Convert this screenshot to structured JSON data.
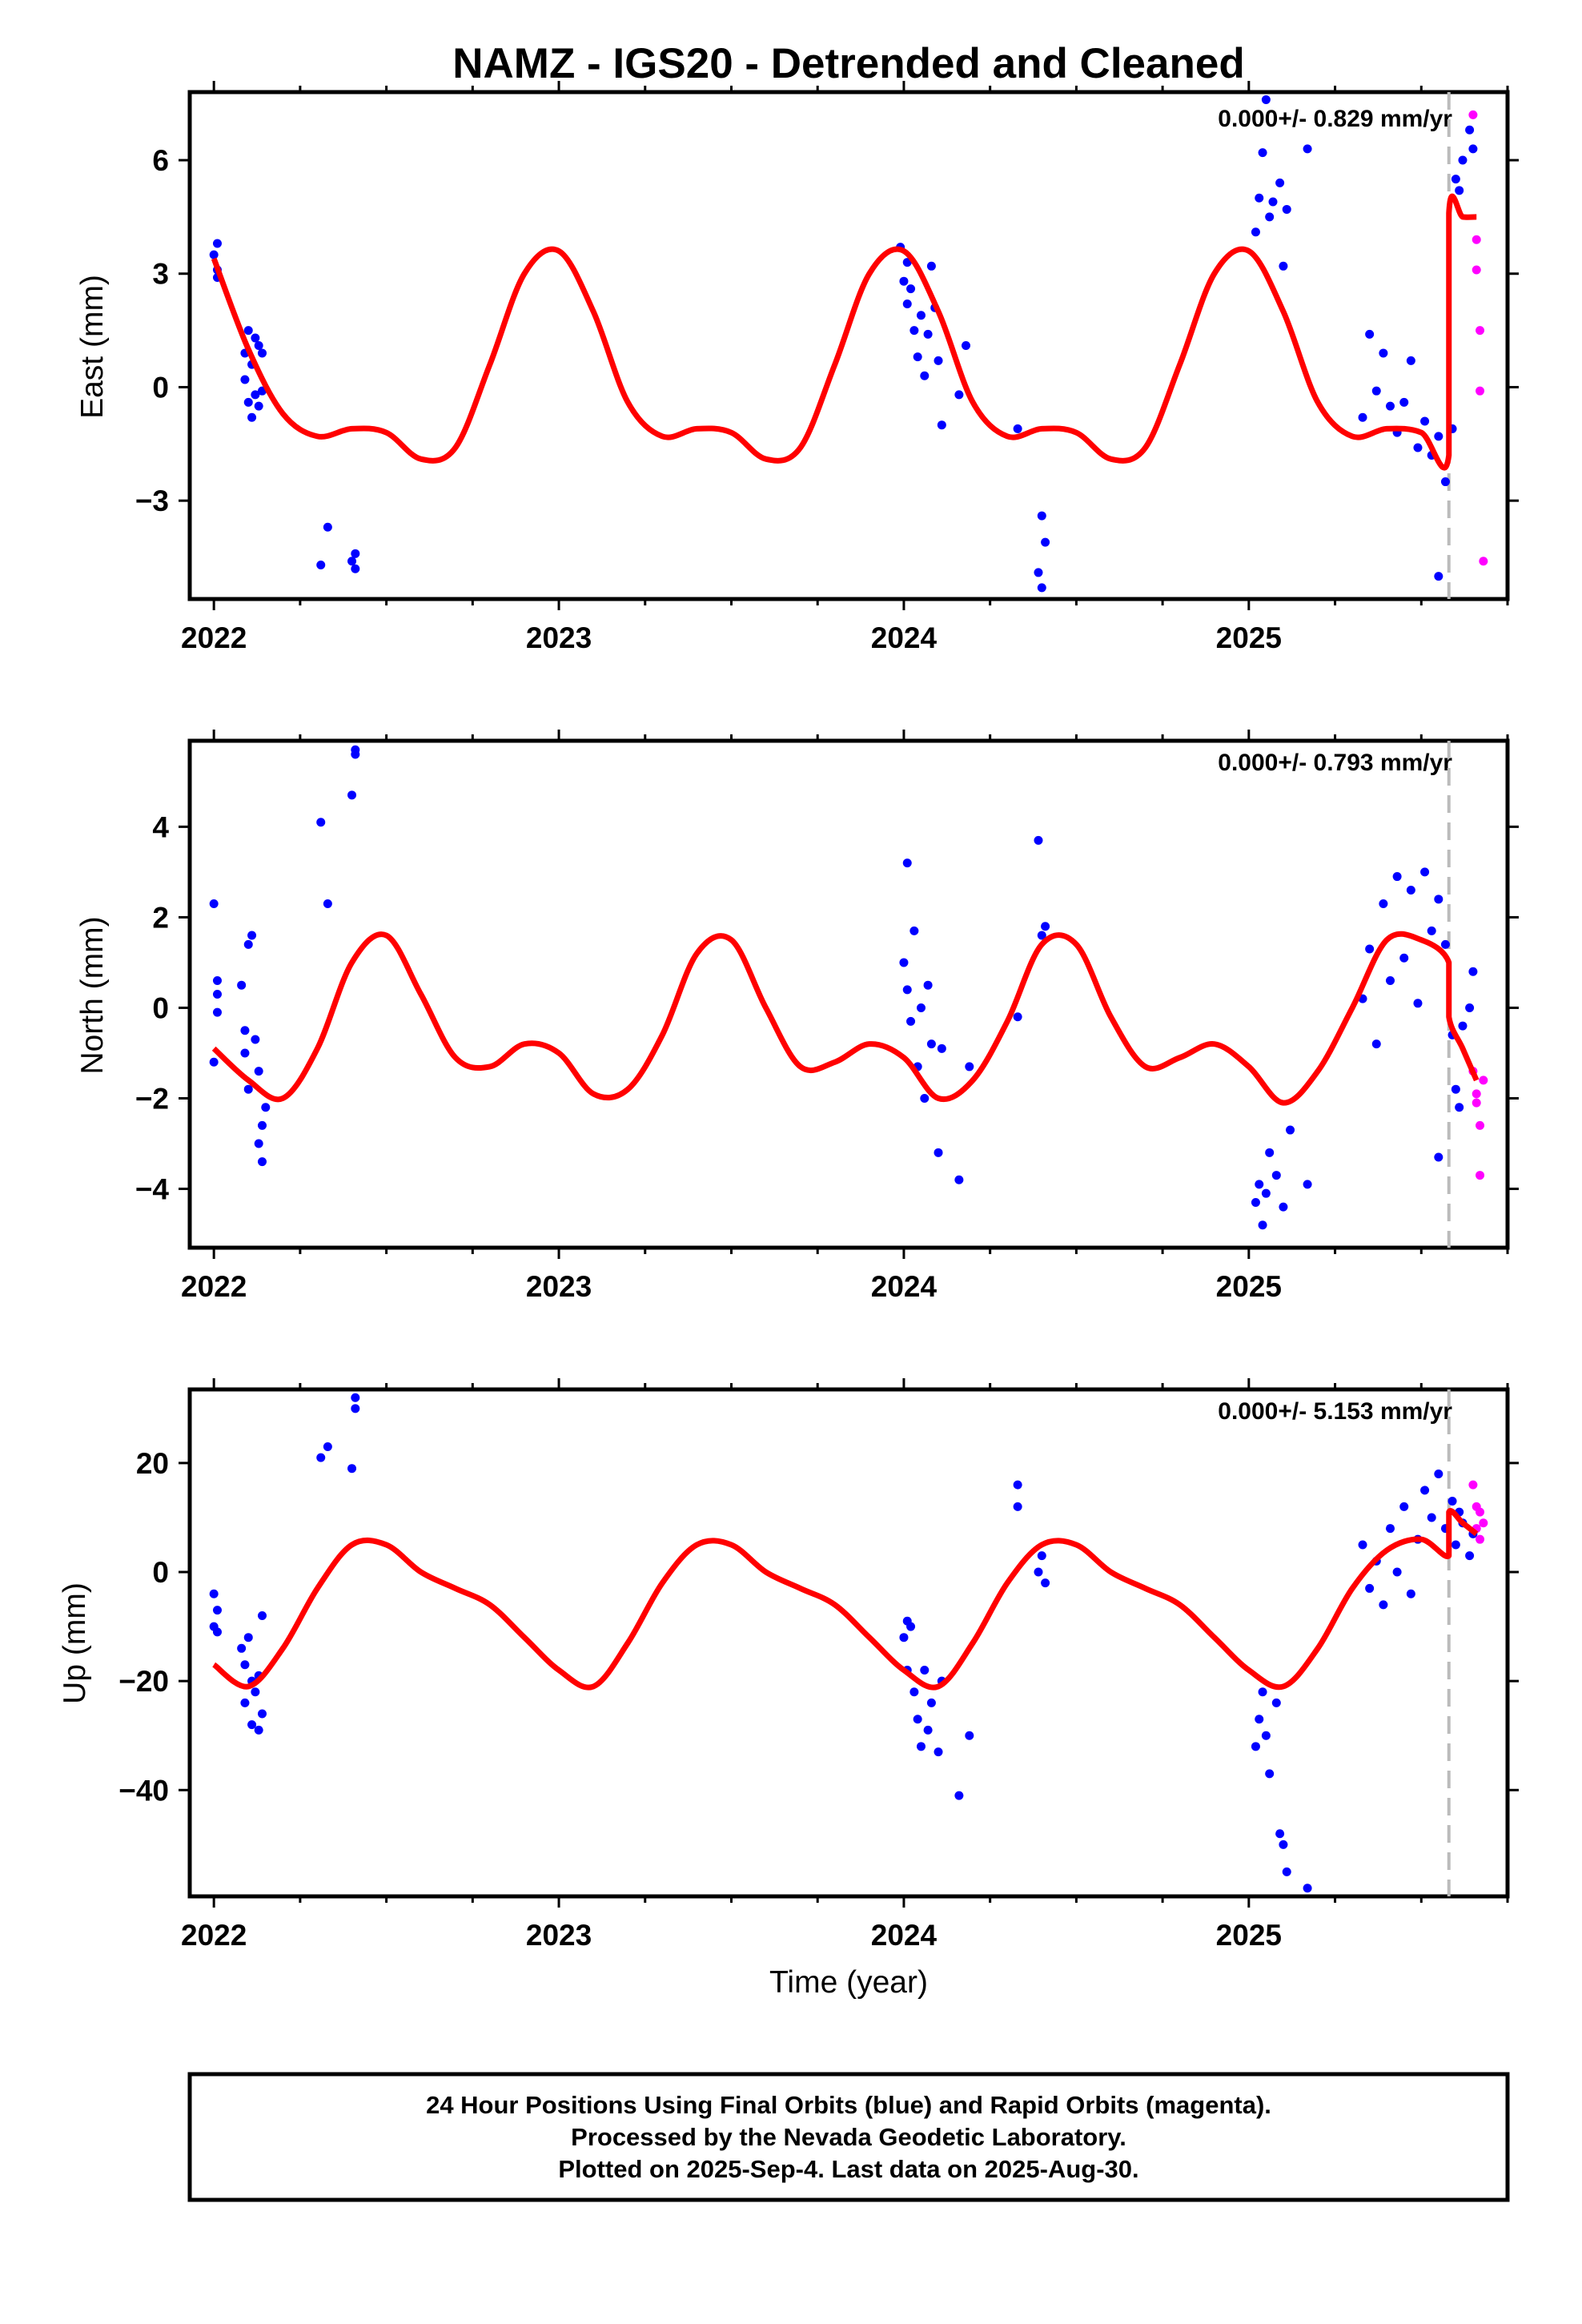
{
  "figure": {
    "title": "NAMZ - IGS20 - Detrended and Cleaned",
    "xlabel": "Time (year)",
    "footer": [
      "24 Hour Positions Using Final Orbits (blue) and Rapid Orbits (magenta).",
      "Processed by the Nevada Geodetic Laboratory.",
      "Plotted on 2025-Sep-4. Last data on 2025-Aug-30."
    ]
  },
  "colors": {
    "final": "#0000ff",
    "rapid": "#ff00ff",
    "model": "#ff0000",
    "break_line": "#bbbbbb",
    "axis": "#000000"
  },
  "chart_data": [
    {
      "type": "scatter",
      "panel": "east",
      "ylabel": "East (mm)",
      "rate_text": "0.000+/- 0.829 mm/yr",
      "xlim": [
        2021.93,
        2025.75
      ],
      "ylim": [
        -5.6,
        7.8
      ],
      "xticks": [
        2022,
        2023,
        2024,
        2025
      ],
      "yticks": [
        6,
        3,
        0,
        -3
      ],
      "ytick_labels": [
        "6",
        "3",
        "0",
        "−3"
      ],
      "equipment_break": 2025.58,
      "model": {
        "x": [
          2022.0,
          2022.1,
          2022.2,
          2022.3,
          2022.4,
          2022.5,
          2022.6,
          2022.7,
          2022.8,
          2022.9,
          2023.0,
          2023.1,
          2023.2,
          2023.3,
          2023.4,
          2023.5,
          2023.6,
          2023.7,
          2023.8,
          2023.9,
          2024.0,
          2024.1,
          2024.2,
          2024.3,
          2024.4,
          2024.5,
          2024.6,
          2024.7,
          2024.8,
          2024.9,
          2025.0,
          2025.1,
          2025.2,
          2025.3,
          2025.4,
          2025.5,
          2025.58,
          2025.58,
          2025.62,
          2025.66
        ],
        "y": [
          3.4,
          1.0,
          -0.7,
          -1.3,
          -1.1,
          -1.2,
          -1.9,
          -1.6,
          0.6,
          3.0,
          3.6,
          2.0,
          -0.4,
          -1.3,
          -1.1,
          -1.2,
          -1.9,
          -1.6,
          0.6,
          3.0,
          3.6,
          2.0,
          -0.4,
          -1.3,
          -1.1,
          -1.2,
          -1.9,
          -1.6,
          0.6,
          3.0,
          3.6,
          2.0,
          -0.4,
          -1.3,
          -1.1,
          -1.2,
          -1.8,
          4.6,
          4.5,
          4.5
        ]
      },
      "final_points": {
        "x": [
          2022.0,
          2022.01,
          2022.01,
          2022.01,
          2022.09,
          2022.09,
          2022.1,
          2022.1,
          2022.11,
          2022.11,
          2022.12,
          2022.12,
          2022.13,
          2022.13,
          2022.14,
          2022.14,
          2022.31,
          2022.33,
          2022.4,
          2022.41,
          2022.41,
          2023.99,
          2024.0,
          2024.01,
          2024.01,
          2024.02,
          2024.03,
          2024.04,
          2024.05,
          2024.06,
          2024.07,
          2024.08,
          2024.09,
          2024.1,
          2024.11,
          2024.16,
          2024.18,
          2024.33,
          2024.39,
          2024.4,
          2024.4,
          2024.41,
          2025.02,
          2025.03,
          2025.04,
          2025.05,
          2025.06,
          2025.07,
          2025.09,
          2025.1,
          2025.11,
          2025.17,
          2025.33,
          2025.35,
          2025.37,
          2025.39,
          2025.41,
          2025.43,
          2025.45,
          2025.47,
          2025.49,
          2025.51,
          2025.53,
          2025.55,
          2025.57,
          2025.59,
          2025.6,
          2025.61,
          2025.62,
          2025.64,
          2025.65,
          2025.55
        ],
        "y": [
          3.5,
          3.1,
          2.9,
          3.8,
          0.9,
          0.2,
          1.5,
          -0.4,
          0.6,
          -0.8,
          1.3,
          -0.2,
          1.1,
          -0.5,
          0.9,
          -0.1,
          -4.7,
          -3.7,
          -4.6,
          -4.4,
          -4.8,
          3.7,
          2.8,
          3.3,
          2.2,
          2.6,
          1.5,
          0.8,
          1.9,
          0.3,
          1.4,
          3.2,
          2.1,
          0.7,
          -1.0,
          -0.2,
          1.1,
          -1.1,
          -4.9,
          -5.3,
          -3.4,
          -4.1,
          4.1,
          5.0,
          6.2,
          7.6,
          4.5,
          4.9,
          5.4,
          3.2,
          4.7,
          6.3,
          -0.8,
          1.4,
          -0.1,
          0.9,
          -0.5,
          -1.2,
          -0.4,
          0.7,
          -1.6,
          -0.9,
          -1.8,
          -1.3,
          -2.5,
          -1.1,
          5.5,
          5.2,
          6.0,
          6.8,
          6.3,
          -5.0
        ]
      },
      "rapid_points": {
        "x": [
          2025.65,
          2025.66,
          2025.66,
          2025.67,
          2025.67,
          2025.68
        ],
        "y": [
          7.2,
          3.9,
          3.1,
          1.5,
          -0.1,
          -4.6
        ]
      }
    },
    {
      "type": "scatter",
      "panel": "north",
      "ylabel": "North (mm)",
      "rate_text": "0.000+/- 0.793 mm/yr",
      "xlim": [
        2021.93,
        2025.75
      ],
      "ylim": [
        -5.3,
        5.9
      ],
      "xticks": [
        2022,
        2023,
        2024,
        2025
      ],
      "yticks": [
        4,
        2,
        0,
        -2,
        -4
      ],
      "ytick_labels": [
        "4",
        "2",
        "0",
        "−2",
        "−4"
      ],
      "equipment_break": 2025.58,
      "model": {
        "x": [
          2022.0,
          2022.1,
          2022.2,
          2022.3,
          2022.4,
          2022.5,
          2022.6,
          2022.7,
          2022.8,
          2022.9,
          2023.0,
          2023.1,
          2023.2,
          2023.3,
          2023.4,
          2023.5,
          2023.6,
          2023.7,
          2023.8,
          2023.9,
          2024.0,
          2024.1,
          2024.2,
          2024.3,
          2024.4,
          2024.5,
          2024.6,
          2024.7,
          2024.8,
          2024.9,
          2025.0,
          2025.1,
          2025.2,
          2025.3,
          2025.4,
          2025.5,
          2025.58,
          2025.58,
          2025.62,
          2025.66
        ],
        "y": [
          -0.9,
          -1.6,
          -2.0,
          -0.9,
          1.0,
          1.6,
          0.3,
          -1.1,
          -1.3,
          -0.8,
          -1.0,
          -1.9,
          -1.8,
          -0.6,
          1.2,
          1.5,
          0.0,
          -1.3,
          -1.2,
          -0.8,
          -1.1,
          -2.0,
          -1.6,
          -0.3,
          1.4,
          1.4,
          -0.2,
          -1.3,
          -1.1,
          -0.8,
          -1.3,
          -2.1,
          -1.4,
          0.0,
          1.5,
          1.5,
          1.0,
          -0.2,
          -0.9,
          -1.6
        ]
      },
      "final_points": {
        "x": [
          2022.0,
          2022.0,
          2022.01,
          2022.01,
          2022.01,
          2022.08,
          2022.09,
          2022.09,
          2022.1,
          2022.1,
          2022.11,
          2022.12,
          2022.13,
          2022.13,
          2022.14,
          2022.14,
          2022.15,
          2022.31,
          2022.33,
          2022.4,
          2022.41,
          2022.41,
          2024.0,
          2024.01,
          2024.01,
          2024.02,
          2024.03,
          2024.04,
          2024.05,
          2024.06,
          2024.07,
          2024.08,
          2024.1,
          2024.11,
          2024.16,
          2024.19,
          2024.33,
          2024.39,
          2024.4,
          2024.41,
          2025.02,
          2025.03,
          2025.04,
          2025.05,
          2025.06,
          2025.08,
          2025.1,
          2025.12,
          2025.17,
          2025.33,
          2025.35,
          2025.37,
          2025.39,
          2025.41,
          2025.43,
          2025.45,
          2025.47,
          2025.49,
          2025.51,
          2025.53,
          2025.55,
          2025.57,
          2025.59,
          2025.6,
          2025.61,
          2025.62,
          2025.64,
          2025.65,
          2025.55
        ],
        "y": [
          2.3,
          -1.2,
          0.6,
          0.3,
          -0.1,
          0.5,
          -0.5,
          -1.0,
          1.4,
          -1.8,
          1.6,
          -0.7,
          -1.4,
          -3.0,
          -2.6,
          -3.4,
          -2.2,
          4.1,
          2.3,
          4.7,
          5.6,
          5.7,
          1.0,
          0.4,
          3.2,
          -0.3,
          1.7,
          -1.3,
          0.0,
          -2.0,
          0.5,
          -0.8,
          -3.2,
          -0.9,
          -3.8,
          -1.3,
          -0.2,
          3.7,
          1.6,
          1.8,
          -4.3,
          -3.9,
          -4.8,
          -4.1,
          -3.2,
          -3.7,
          -4.4,
          -2.7,
          -3.9,
          0.2,
          1.3,
          -0.8,
          2.3,
          0.6,
          2.9,
          1.1,
          2.6,
          0.1,
          3.0,
          1.7,
          2.4,
          1.4,
          -0.6,
          -1.8,
          -2.2,
          -0.4,
          0.0,
          0.8,
          -3.3
        ]
      },
      "rapid_points": {
        "x": [
          2025.65,
          2025.66,
          2025.66,
          2025.67,
          2025.67,
          2025.68
        ],
        "y": [
          -1.4,
          -1.9,
          -2.1,
          -2.6,
          -3.7,
          -1.6
        ]
      }
    },
    {
      "type": "scatter",
      "panel": "up",
      "ylabel": "Up (mm)",
      "rate_text": "0.000+/- 5.153 mm/yr",
      "xlim": [
        2021.93,
        2025.75
      ],
      "ylim": [
        -59.5,
        33.5
      ],
      "xticks": [
        2022,
        2023,
        2024,
        2025
      ],
      "yticks": [
        20,
        0,
        -20,
        -40
      ],
      "ytick_labels": [
        "20",
        "0",
        "−20",
        "−40"
      ],
      "equipment_break": 2025.58,
      "model": {
        "x": [
          2022.0,
          2022.1,
          2022.2,
          2022.3,
          2022.4,
          2022.5,
          2022.6,
          2022.7,
          2022.8,
          2022.9,
          2023.0,
          2023.1,
          2023.2,
          2023.3,
          2023.4,
          2023.5,
          2023.6,
          2023.7,
          2023.8,
          2023.9,
          2024.0,
          2024.1,
          2024.2,
          2024.3,
          2024.4,
          2024.5,
          2024.6,
          2024.7,
          2024.8,
          2024.9,
          2025.0,
          2025.1,
          2025.2,
          2025.3,
          2025.4,
          2025.5,
          2025.58,
          2025.58,
          2025.62,
          2025.66
        ],
        "y": [
          -17,
          -21,
          -14,
          -3,
          5,
          5,
          0,
          -3,
          -6,
          -12,
          -18,
          -21,
          -13,
          -2,
          5,
          5,
          0,
          -3,
          -6,
          -12,
          -18,
          -21,
          -13,
          -2,
          5,
          5,
          0,
          -3,
          -6,
          -12,
          -18,
          -21,
          -14,
          -3,
          4,
          6,
          3,
          11,
          9,
          7
        ]
      },
      "final_points": {
        "x": [
          2022.0,
          2022.0,
          2022.01,
          2022.01,
          2022.08,
          2022.09,
          2022.09,
          2022.1,
          2022.11,
          2022.11,
          2022.12,
          2022.13,
          2022.13,
          2022.14,
          2022.14,
          2022.31,
          2022.33,
          2022.4,
          2022.41,
          2022.41,
          2024.0,
          2024.01,
          2024.01,
          2024.02,
          2024.03,
          2024.04,
          2024.05,
          2024.06,
          2024.07,
          2024.08,
          2024.1,
          2024.11,
          2024.16,
          2024.19,
          2024.33,
          2024.33,
          2024.39,
          2024.4,
          2024.41,
          2025.02,
          2025.03,
          2025.04,
          2025.05,
          2025.06,
          2025.08,
          2025.09,
          2025.1,
          2025.11,
          2025.17,
          2025.33,
          2025.35,
          2025.37,
          2025.39,
          2025.41,
          2025.43,
          2025.45,
          2025.47,
          2025.49,
          2025.51,
          2025.53,
          2025.55,
          2025.57,
          2025.59,
          2025.6,
          2025.61,
          2025.62,
          2025.64,
          2025.65
        ],
        "y": [
          -4,
          -10,
          -7,
          -11,
          -14,
          -17,
          -24,
          -12,
          -20,
          -28,
          -22,
          -29,
          -19,
          -26,
          -8,
          21,
          23,
          19,
          30,
          32,
          -12,
          -9,
          -18,
          -10,
          -22,
          -27,
          -32,
          -18,
          -29,
          -24,
          -33,
          -20,
          -41,
          -30,
          16,
          12,
          0,
          3,
          -2,
          -32,
          -27,
          -22,
          -30,
          -37,
          -24,
          -48,
          -50,
          -55,
          -58,
          5,
          -3,
          2,
          -6,
          8,
          0,
          12,
          -4,
          6,
          15,
          10,
          18,
          8,
          13,
          5,
          11,
          9,
          3,
          7
        ]
      },
      "rapid_points": {
        "x": [
          2025.65,
          2025.66,
          2025.66,
          2025.67,
          2025.67,
          2025.68
        ],
        "y": [
          16,
          12,
          8,
          11,
          6,
          9
        ]
      }
    }
  ]
}
